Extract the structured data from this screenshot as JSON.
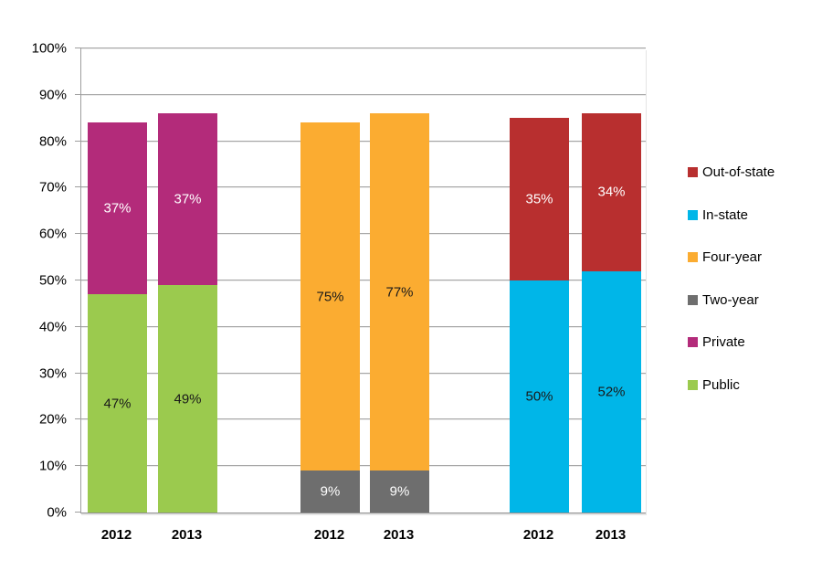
{
  "chart_data": {
    "type": "bar",
    "stacked": true,
    "title": "",
    "xlabel": "",
    "ylabel": "",
    "ylim": [
      0,
      100
    ],
    "grid": true,
    "legend_position": "right",
    "y_axis": {
      "tick_labels": [
        "0%",
        "10%",
        "20%",
        "30%",
        "40%",
        "50%",
        "60%",
        "70%",
        "80%",
        "90%",
        "100%"
      ],
      "tick_values": [
        0,
        10,
        20,
        30,
        40,
        50,
        60,
        70,
        80,
        90,
        100
      ]
    },
    "series": [
      {
        "name": "Out-of-state",
        "color": "#B82F2F",
        "label_color": "#FFFFFF"
      },
      {
        "name": "In-state",
        "color": "#00B6E8",
        "label_color": "#1A1A1A"
      },
      {
        "name": "Four-year",
        "color": "#FBAC31",
        "label_color": "#1A1A1A"
      },
      {
        "name": "Two-year",
        "color": "#6E6E6E",
        "label_color": "#FFFFFF"
      },
      {
        "name": "Private",
        "color": "#B32B7A",
        "label_color": "#FFFFFF"
      },
      {
        "name": "Public",
        "color": "#9BCA4E",
        "label_color": "#1A1A1A"
      }
    ],
    "legend": [
      "Out-of-state",
      "In-state",
      "Four-year",
      "Two-year",
      "Private",
      "Public"
    ],
    "bars": [
      {
        "year": "2012",
        "group": "public-private",
        "segments": [
          {
            "series": "Public",
            "value": 47,
            "label": "47%"
          },
          {
            "series": "Private",
            "value": 37,
            "label": "37%"
          }
        ]
      },
      {
        "year": "2013",
        "group": "public-private",
        "segments": [
          {
            "series": "Public",
            "value": 49,
            "label": "49%"
          },
          {
            "series": "Private",
            "value": 37,
            "label": "37%"
          }
        ]
      },
      {
        "year": "2012",
        "group": "two-year-four-year",
        "segments": [
          {
            "series": "Two-year",
            "value": 9,
            "label": "9%"
          },
          {
            "series": "Four-year",
            "value": 75,
            "label": "75%"
          }
        ]
      },
      {
        "year": "2013",
        "group": "two-year-four-year",
        "segments": [
          {
            "series": "Two-year",
            "value": 9,
            "label": "9%"
          },
          {
            "series": "Four-year",
            "value": 77,
            "label": "77%"
          }
        ]
      },
      {
        "year": "2012",
        "group": "in-state-out-of-state",
        "segments": [
          {
            "series": "In-state",
            "value": 50,
            "label": "50%"
          },
          {
            "series": "Out-of-state",
            "value": 35,
            "label": "35%"
          }
        ]
      },
      {
        "year": "2013",
        "group": "in-state-out-of-state",
        "segments": [
          {
            "series": "In-state",
            "value": 52,
            "label": "52%"
          },
          {
            "series": "Out-of-state",
            "value": 34,
            "label": "34%"
          }
        ]
      }
    ]
  }
}
